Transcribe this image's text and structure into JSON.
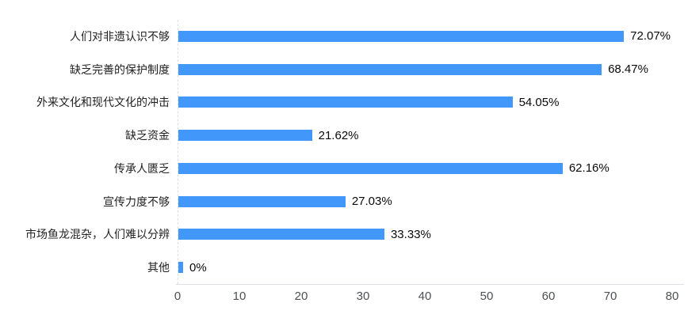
{
  "chart_data": {
    "type": "bar",
    "orientation": "horizontal",
    "title": "",
    "xlabel": "",
    "ylabel": "",
    "categories": [
      "人们对非遗认识不够",
      "缺乏完善的保护制度",
      "外来文化和现代文化的冲击",
      "缺乏资金",
      "传承人匮乏",
      "宣传力度不够",
      "市场鱼龙混杂，人们难以分辨",
      "其他"
    ],
    "values": [
      72.07,
      68.47,
      54.05,
      21.62,
      62.16,
      27.03,
      33.33,
      0
    ],
    "value_labels": [
      "72.07%",
      "68.47%",
      "54.05%",
      "21.62%",
      "62.16%",
      "27.03%",
      "33.33%",
      "0%"
    ],
    "xlim": [
      0,
      80
    ],
    "x_ticks": [
      "0",
      "10",
      "20",
      "30",
      "40",
      "50",
      "60",
      "70",
      "80"
    ],
    "grid": false,
    "legend": false,
    "colors": {
      "bar": "#4297fa",
      "category_label": "#222222",
      "value_label": "#0a0a0a",
      "tick_label": "#4d5054",
      "axis_line": "#dcdfe3"
    }
  }
}
